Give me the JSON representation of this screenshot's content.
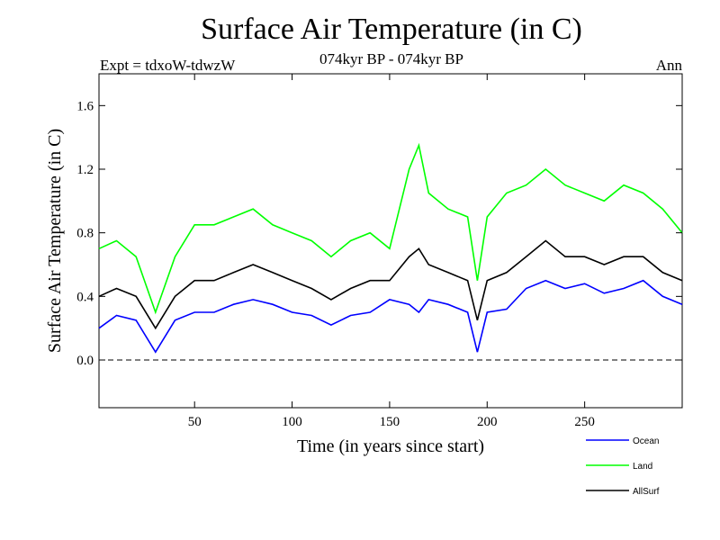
{
  "chart_data": {
    "type": "line",
    "title": "Surface Air Temperature (in C)",
    "subtitle": "074kyr BP - 074kyr BP",
    "expt_label": "Expt = tdxoW-tdwzW",
    "period_label": "Ann",
    "xlabel": "Time (in years since start)",
    "ylabel": "Surface Air Temperature (in C)",
    "xlim": [
      1,
      300
    ],
    "ylim": [
      -0.3,
      1.8
    ],
    "xticks": [
      50,
      100,
      150,
      200,
      250
    ],
    "yticks": [
      0.0,
      0.4,
      0.8,
      1.2,
      1.6
    ],
    "ytick_labels": [
      "0.0",
      "0.4",
      "0.8",
      "1.2",
      "1.6"
    ],
    "reference_line": 0.0,
    "x": [
      1,
      10,
      20,
      30,
      40,
      50,
      60,
      70,
      80,
      90,
      100,
      110,
      120,
      130,
      140,
      150,
      160,
      165,
      170,
      180,
      190,
      195,
      200,
      210,
      220,
      230,
      240,
      250,
      260,
      270,
      280,
      290,
      300
    ],
    "series": [
      {
        "name": "Ocean",
        "color": "#0000ff",
        "values": [
          0.2,
          0.28,
          0.25,
          0.05,
          0.25,
          0.3,
          0.3,
          0.35,
          0.38,
          0.35,
          0.3,
          0.28,
          0.22,
          0.28,
          0.3,
          0.38,
          0.35,
          0.3,
          0.38,
          0.35,
          0.3,
          0.05,
          0.3,
          0.32,
          0.45,
          0.5,
          0.45,
          0.48,
          0.42,
          0.45,
          0.5,
          0.4,
          0.35
        ]
      },
      {
        "name": "Land",
        "color": "#00ff00",
        "values": [
          0.7,
          0.75,
          0.65,
          0.3,
          0.65,
          0.85,
          0.85,
          0.9,
          0.95,
          0.85,
          0.8,
          0.75,
          0.65,
          0.75,
          0.8,
          0.7,
          1.2,
          1.35,
          1.05,
          0.95,
          0.9,
          0.5,
          0.9,
          1.05,
          1.1,
          1.2,
          1.1,
          1.05,
          1.0,
          1.1,
          1.05,
          0.95,
          0.8
        ]
      },
      {
        "name": "AllSurf",
        "color": "#000000",
        "values": [
          0.4,
          0.45,
          0.4,
          0.2,
          0.4,
          0.5,
          0.5,
          0.55,
          0.6,
          0.55,
          0.5,
          0.45,
          0.38,
          0.45,
          0.5,
          0.5,
          0.65,
          0.7,
          0.6,
          0.55,
          0.5,
          0.25,
          0.5,
          0.55,
          0.65,
          0.75,
          0.65,
          0.65,
          0.6,
          0.65,
          0.65,
          0.55,
          0.5
        ]
      }
    ],
    "grid": false,
    "legend_position": "bottom-right"
  }
}
